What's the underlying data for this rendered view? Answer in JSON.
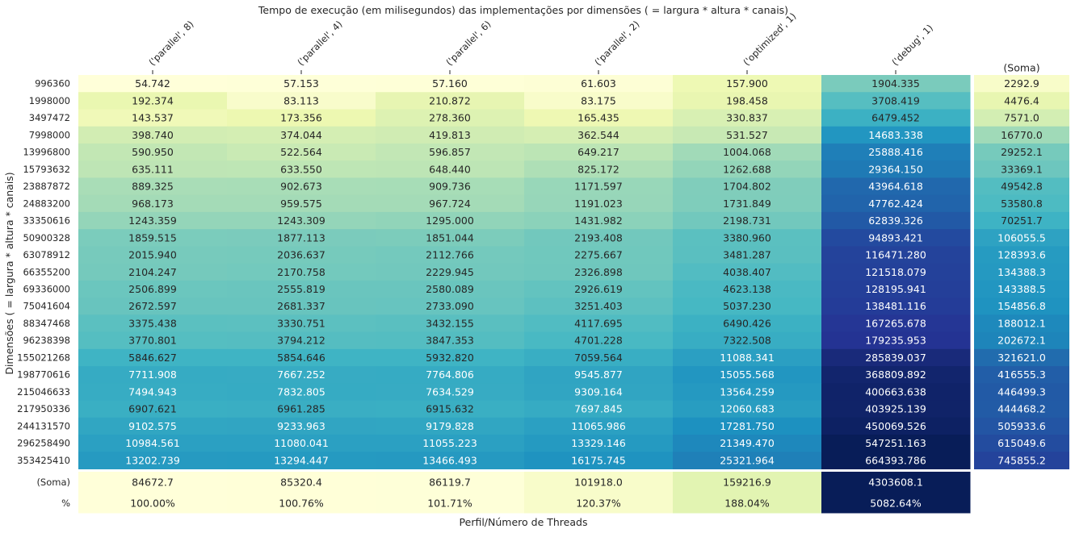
{
  "chart_data": {
    "type": "heatmap",
    "title": "Tempo de execução (em milisegundos) das implementações por dimensões ( = largura * altura * canais)",
    "xlabel": "Perfil/Número de Threads",
    "ylabel": "Dimensões ( = largura * altura * canais)",
    "colormap": "YlGnBu",
    "sum_label": "(Soma)",
    "percent_label": "%",
    "columns": [
      "('parallel', 8)",
      "('parallel', 4)",
      "('parallel', 6)",
      "('parallel', 2)",
      "('optimized', 1)",
      "('debug', 1)"
    ],
    "rows": [
      "996360",
      "1998000",
      "3497472",
      "7998000",
      "13996800",
      "15793632",
      "23887872",
      "24883200",
      "33350616",
      "50900328",
      "63078912",
      "66355200",
      "69336000",
      "75041604",
      "88347468",
      "96238398",
      "155021268",
      "198770616",
      "215046633",
      "217950336",
      "244131570",
      "296258490",
      "353425410"
    ],
    "values": [
      [
        54.742,
        57.153,
        57.16,
        61.603,
        157.9,
        1904.335
      ],
      [
        192.374,
        83.113,
        210.872,
        83.175,
        198.458,
        3708.419
      ],
      [
        143.537,
        173.356,
        278.36,
        165.435,
        330.837,
        6479.452
      ],
      [
        398.74,
        374.044,
        419.813,
        362.544,
        531.527,
        14683.338
      ],
      [
        590.95,
        522.564,
        596.857,
        649.217,
        1004.068,
        25888.416
      ],
      [
        635.111,
        633.55,
        648.44,
        825.172,
        1262.688,
        29364.15
      ],
      [
        889.325,
        902.673,
        909.736,
        1171.597,
        1704.802,
        43964.618
      ],
      [
        968.173,
        959.575,
        967.724,
        1191.023,
        1731.849,
        47762.424
      ],
      [
        1243.359,
        1243.309,
        1295.0,
        1431.982,
        2198.731,
        62839.326
      ],
      [
        1859.515,
        1877.113,
        1851.044,
        2193.408,
        3380.96,
        94893.421
      ],
      [
        2015.94,
        2036.637,
        2112.766,
        2275.667,
        3481.287,
        116471.28
      ],
      [
        2104.247,
        2170.758,
        2229.945,
        2326.898,
        4038.407,
        121518.079
      ],
      [
        2506.899,
        2555.819,
        2580.089,
        2926.619,
        4623.138,
        128195.941
      ],
      [
        2672.597,
        2681.337,
        2733.09,
        3251.403,
        5037.23,
        138481.116
      ],
      [
        3375.438,
        3330.751,
        3432.155,
        4117.695,
        6490.426,
        167265.678
      ],
      [
        3770.801,
        3794.212,
        3847.353,
        4701.228,
        7322.508,
        179235.953
      ],
      [
        5846.627,
        5854.646,
        5932.82,
        7059.564,
        11088.341,
        285839.037
      ],
      [
        7711.908,
        7667.252,
        7764.806,
        9545.877,
        15055.568,
        368809.892
      ],
      [
        7494.943,
        7832.805,
        7634.529,
        9309.164,
        13564.259,
        400663.638
      ],
      [
        6907.621,
        6961.285,
        6915.632,
        7697.845,
        12060.683,
        403925.139
      ],
      [
        9102.575,
        9233.963,
        9179.828,
        11065.986,
        17281.75,
        450069.526
      ],
      [
        10984.561,
        11080.041,
        11055.223,
        13329.146,
        21349.47,
        547251.163
      ],
      [
        13202.739,
        13294.447,
        13466.493,
        16175.745,
        25321.964,
        664393.786
      ]
    ],
    "row_sums": [
      2292.9,
      4476.4,
      7571.0,
      16770.0,
      29252.1,
      33369.1,
      49542.8,
      53580.8,
      70251.7,
      106055.5,
      128393.6,
      134388.3,
      143388.5,
      154856.8,
      188012.1,
      202672.1,
      321621.0,
      416555.3,
      446499.3,
      444468.2,
      505933.6,
      615049.6,
      745855.2
    ],
    "col_sums": [
      84672.7,
      85320.4,
      86119.7,
      101918.0,
      159216.9,
      4303608.1
    ],
    "col_percent": [
      "100.00%",
      "100.76%",
      "101.71%",
      "120.37%",
      "188.04%",
      "5082.64%"
    ],
    "grid": false
  }
}
